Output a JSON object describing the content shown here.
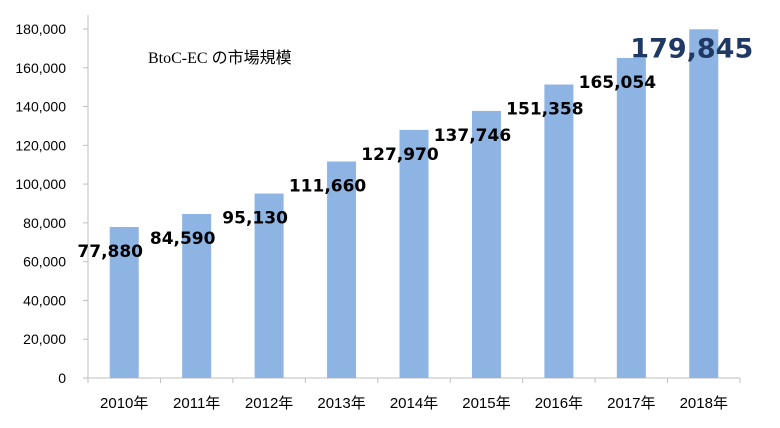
{
  "chart_data": {
    "type": "bar",
    "title": "BtoC-EC の市場規模",
    "categories": [
      "2010年",
      "2011年",
      "2012年",
      "2013年",
      "2014年",
      "2015年",
      "2016年",
      "2017年",
      "2018年"
    ],
    "values": [
      77880,
      84590,
      95130,
      111660,
      127970,
      137746,
      151358,
      165054,
      179845
    ],
    "value_labels": [
      "77,880",
      "84,590",
      "95,130",
      "111,660",
      "127,970",
      "137,746",
      "151,358",
      "165,054",
      "179,845"
    ],
    "yticks": [
      "0",
      "20,000",
      "40,000",
      "60,000",
      "80,000",
      "100,000",
      "120,000",
      "140,000",
      "160,000",
      "180,000"
    ],
    "ylim": [
      0,
      180000
    ],
    "grid": false,
    "colors": {
      "bar": "#8eb4e3",
      "highlight_label": "#1f3864",
      "axis": "#bfbfbf"
    }
  }
}
